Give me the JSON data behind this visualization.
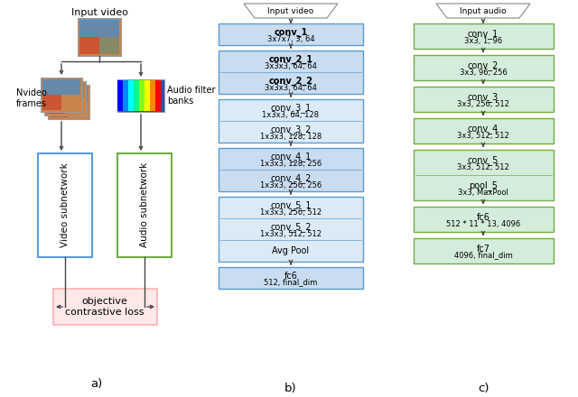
{
  "bg_color": "#FFFFFF",
  "font_size": 7.5,
  "panel_a": {
    "input_video_label": "Input video",
    "n_video_label": "Νvideo\nframes",
    "audio_filter_label": "Audio filter\nbanks",
    "video_subnet_label": "Video subnetwork",
    "audio_subnet_label": "Audio subnetwork",
    "loss_label": "objective\ncontrastive loss"
  },
  "panel_b": {
    "header": "Input video",
    "groups": [
      {
        "layers": [
          [
            "conv_1",
            "3x7x7, 3, 64"
          ]
        ],
        "bold": [
          true
        ],
        "color": "#C9DCF0",
        "edge": "#5B9BD5"
      },
      {
        "layers": [
          [
            "conv_2_1",
            "3x3x3, 64, 64"
          ],
          [
            "conv_2_2",
            "3x3x3, 64, 64"
          ]
        ],
        "bold": [
          true,
          true
        ],
        "color": "#C9DCF0",
        "edge": "#5B9BD5"
      },
      {
        "layers": [
          [
            "conv_3_1",
            "1x3x3, 64, 128"
          ],
          [
            "conv_3_2",
            "1x3x3, 128, 128"
          ]
        ],
        "bold": [
          false,
          false
        ],
        "color": "#DAEAF7",
        "edge": "#5B9BD5"
      },
      {
        "layers": [
          [
            "conv_4_1",
            "1x3x3, 128, 256"
          ],
          [
            "conv_4_2",
            "1x3x3, 256, 256"
          ]
        ],
        "bold": [
          false,
          false
        ],
        "color": "#C9DCF0",
        "edge": "#5B9BD5"
      },
      {
        "layers": [
          [
            "conv_5_1",
            "1x3x3, 256, 512"
          ],
          [
            "conv_5_2",
            "1x3x3, 512, 512"
          ],
          [
            "Avg Pool",
            ""
          ]
        ],
        "bold": [
          false,
          false,
          false
        ],
        "color": "#DAEAF7",
        "edge": "#5B9BD5"
      },
      {
        "layers": [
          [
            "fc6",
            "512, final_dim"
          ]
        ],
        "bold": [
          false
        ],
        "color": "#C9DCF0",
        "edge": "#5B9BD5"
      }
    ],
    "label": "b)"
  },
  "panel_c": {
    "header": "Input audio",
    "layers": [
      [
        "conv_1",
        "3x3, 1, 96"
      ],
      [
        "conv_2",
        "3x3, 96, 256"
      ],
      [
        "conv_3",
        "3x3, 256, 512"
      ],
      [
        "conv_4",
        "3x3, 512, 512"
      ],
      [
        "conv_5",
        "3x3, 512, 512"
      ],
      [
        "pool_5",
        "3x3, MaxPool"
      ],
      [
        "fc6",
        "512 * 11 * 13, 4096"
      ],
      [
        "fc7",
        "4096, final_dim"
      ]
    ],
    "conv5_pool5_combined": true,
    "box_color": "#D4EDDA",
    "box_edge": "#70AD47",
    "label": "c)"
  }
}
